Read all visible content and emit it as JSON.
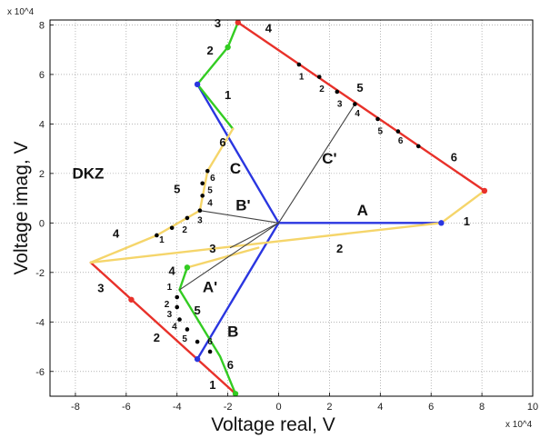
{
  "chart_data": {
    "type": "line",
    "xlabel": "Voltage real, V",
    "ylabel": "Voltage imag, V",
    "x_exponent": "x 10^4",
    "y_exponent": "x 10^4",
    "xlim": [
      -90000,
      100000
    ],
    "ylim": [
      -70000,
      82000
    ],
    "x_ticks": [
      -80000,
      -60000,
      -40000,
      -20000,
      0,
      20000,
      40000,
      60000,
      80000,
      100000
    ],
    "x_tick_labels": [
      "-8",
      "-6",
      "-4",
      "-2",
      "0",
      "2",
      "4",
      "6",
      "8",
      "10"
    ],
    "y_ticks": [
      -60000,
      -40000,
      -20000,
      0,
      20000,
      40000,
      60000,
      80000
    ],
    "y_tick_labels": [
      "-6",
      "-4",
      "-2",
      "0",
      "2",
      "4",
      "6",
      "8"
    ],
    "grid": true,
    "colors": {
      "red": "#e8312a",
      "blue": "#2a36e0",
      "green": "#33cc22",
      "yellow": "#f5d56a",
      "gray": "#444444",
      "black": "#000000"
    },
    "series": [
      {
        "color": "red",
        "points": [
          [
            -16000,
            81000
          ],
          [
            81000,
            13000
          ]
        ]
      },
      {
        "color": "red",
        "points": [
          [
            -74000,
            -16000
          ],
          [
            -17000,
            -69000
          ]
        ]
      },
      {
        "color": "blue",
        "points": [
          [
            0,
            0
          ],
          [
            -32000,
            56000
          ]
        ]
      },
      {
        "color": "blue",
        "points": [
          [
            0,
            0
          ],
          [
            -32000,
            -55000
          ]
        ]
      },
      {
        "color": "blue",
        "points": [
          [
            0,
            0
          ],
          [
            64000,
            0
          ]
        ]
      },
      {
        "color": "green",
        "points": [
          [
            -16000,
            81000
          ],
          [
            -20000,
            71000
          ],
          [
            -32000,
            56000
          ],
          [
            -18000,
            38000
          ]
        ]
      },
      {
        "color": "green",
        "points": [
          [
            -17000,
            -69000
          ],
          [
            -23000,
            -54000
          ],
          [
            -39000,
            -27000
          ],
          [
            -36000,
            -18000
          ]
        ]
      },
      {
        "color": "yellow",
        "points": [
          [
            -18000,
            38000
          ],
          [
            -28000,
            21000
          ],
          [
            -31000,
            5000
          ],
          [
            -48000,
            -5000
          ],
          [
            -74000,
            -16000
          ],
          [
            64000,
            0
          ],
          [
            81000,
            13000
          ]
        ]
      },
      {
        "color": "yellow",
        "points": [
          [
            -36000,
            -18000
          ],
          [
            -8000,
            -10000
          ]
        ]
      },
      {
        "color": "gray",
        "points": [
          [
            0,
            0
          ],
          [
            30000,
            48000
          ]
        ]
      },
      {
        "color": "gray",
        "points": [
          [
            0,
            0
          ],
          [
            -31000,
            5000
          ]
        ]
      },
      {
        "color": "gray",
        "points": [
          [
            0,
            0
          ],
          [
            -39000,
            -27000
          ]
        ]
      },
      {
        "color": "gray",
        "points": [
          [
            0,
            0
          ],
          [
            -19000,
            -10000
          ]
        ]
      }
    ],
    "markers": [
      {
        "x": -16000,
        "y": 81000,
        "color": "red"
      },
      {
        "x": 81000,
        "y": 13000,
        "color": "red"
      },
      {
        "x": -58000,
        "y": -31000,
        "color": "red"
      },
      {
        "x": -32000,
        "y": 56000,
        "color": "blue"
      },
      {
        "x": 64000,
        "y": 0,
        "color": "blue"
      },
      {
        "x": -32000,
        "y": -55000,
        "color": "blue"
      },
      {
        "x": -20000,
        "y": 71000,
        "color": "green"
      },
      {
        "x": -36000,
        "y": -18000,
        "color": "green"
      },
      {
        "x": -17000,
        "y": -69000,
        "color": "green"
      },
      {
        "x": 8000,
        "y": 64000,
        "color": "black"
      },
      {
        "x": 16000,
        "y": 59000,
        "color": "black"
      },
      {
        "x": 23000,
        "y": 53000,
        "color": "black"
      },
      {
        "x": 30000,
        "y": 48000,
        "color": "black"
      },
      {
        "x": 39000,
        "y": 42000,
        "color": "black"
      },
      {
        "x": 47000,
        "y": 37000,
        "color": "black"
      },
      {
        "x": 55000,
        "y": 31000,
        "color": "black"
      },
      {
        "x": -28000,
        "y": 21000,
        "color": "black"
      },
      {
        "x": -30000,
        "y": 16000,
        "color": "black"
      },
      {
        "x": -30000,
        "y": 11000,
        "color": "black"
      },
      {
        "x": -31000,
        "y": 5000,
        "color": "black"
      },
      {
        "x": -36000,
        "y": 2000,
        "color": "black"
      },
      {
        "x": -42000,
        "y": -2000,
        "color": "black"
      },
      {
        "x": -48000,
        "y": -5000,
        "color": "black"
      },
      {
        "x": -40000,
        "y": -30000,
        "color": "black"
      },
      {
        "x": -40000,
        "y": -34000,
        "color": "black"
      },
      {
        "x": -39000,
        "y": -39000,
        "color": "black"
      },
      {
        "x": -36000,
        "y": -43000,
        "color": "black"
      },
      {
        "x": -32000,
        "y": -48000,
        "color": "black"
      },
      {
        "x": -27000,
        "y": -52000,
        "color": "black"
      }
    ],
    "annotations": [
      {
        "text": "A",
        "x": 33000,
        "y": 3000,
        "size": "big"
      },
      {
        "text": "C",
        "x": -17000,
        "y": 20000,
        "size": "big"
      },
      {
        "text": "B",
        "x": -18000,
        "y": -46000,
        "size": "big"
      },
      {
        "text": "C'",
        "x": 20000,
        "y": 24000,
        "size": "big"
      },
      {
        "text": "B'",
        "x": -14000,
        "y": 5000,
        "size": "big"
      },
      {
        "text": "A'",
        "x": -27000,
        "y": -28000,
        "size": "big"
      },
      {
        "text": "DKZ",
        "x": -75000,
        "y": 18000,
        "size": "big"
      },
      {
        "text": "1",
        "x": 74000,
        "y": -1000,
        "size": "mid"
      },
      {
        "text": "2",
        "x": 24000,
        "y": -12000,
        "size": "mid"
      },
      {
        "text": "3",
        "x": -26000,
        "y": -12000,
        "size": "mid"
      },
      {
        "text": "4",
        "x": -42000,
        "y": -21000,
        "size": "mid"
      },
      {
        "text": "5",
        "x": -40000,
        "y": 12000,
        "size": "mid"
      },
      {
        "text": "4",
        "x": -64000,
        "y": -6000,
        "size": "mid"
      },
      {
        "text": "6",
        "x": -22000,
        "y": 31000,
        "size": "mid"
      },
      {
        "text": "1",
        "x": -20000,
        "y": 50000,
        "size": "mid"
      },
      {
        "text": "2",
        "x": -27000,
        "y": 68000,
        "size": "mid"
      },
      {
        "text": "3",
        "x": -24000,
        "y": 79000,
        "size": "mid"
      },
      {
        "text": "4",
        "x": -4000,
        "y": 77000,
        "size": "mid"
      },
      {
        "text": "5",
        "x": 32000,
        "y": 53000,
        "size": "mid"
      },
      {
        "text": "6",
        "x": 69000,
        "y": 25000,
        "size": "mid"
      },
      {
        "text": "3",
        "x": -70000,
        "y": -28000,
        "size": "mid"
      },
      {
        "text": "2",
        "x": -48000,
        "y": -48000,
        "size": "mid"
      },
      {
        "text": "1",
        "x": -26000,
        "y": -67000,
        "size": "mid"
      },
      {
        "text": "5",
        "x": -32000,
        "y": -37000,
        "size": "mid"
      },
      {
        "text": "6",
        "x": -19000,
        "y": -59000,
        "size": "mid"
      },
      {
        "text": "1",
        "x": 9000,
        "y": 58000,
        "size": "small"
      },
      {
        "text": "2",
        "x": 17000,
        "y": 53000,
        "size": "small"
      },
      {
        "text": "3",
        "x": 24000,
        "y": 47000,
        "size": "small"
      },
      {
        "text": "4",
        "x": 31000,
        "y": 43000,
        "size": "small"
      },
      {
        "text": "5",
        "x": 40000,
        "y": 36000,
        "size": "small"
      },
      {
        "text": "6",
        "x": 48000,
        "y": 32000,
        "size": "small"
      },
      {
        "text": "6",
        "x": -26000,
        "y": 17000,
        "size": "small"
      },
      {
        "text": "5",
        "x": -27000,
        "y": 12000,
        "size": "small"
      },
      {
        "text": "4",
        "x": -27000,
        "y": 7000,
        "size": "small"
      },
      {
        "text": "3",
        "x": -31000,
        "y": 0,
        "size": "small"
      },
      {
        "text": "2",
        "x": -37000,
        "y": -4000,
        "size": "small"
      },
      {
        "text": "1",
        "x": -46000,
        "y": -8000,
        "size": "small"
      },
      {
        "text": "1",
        "x": -43000,
        "y": -27000,
        "size": "small"
      },
      {
        "text": "2",
        "x": -44000,
        "y": -34000,
        "size": "small"
      },
      {
        "text": "3",
        "x": -43000,
        "y": -38000,
        "size": "small"
      },
      {
        "text": "4",
        "x": -41000,
        "y": -43000,
        "size": "small"
      },
      {
        "text": "5",
        "x": -37000,
        "y": -48000,
        "size": "small"
      },
      {
        "text": "6",
        "x": -27000,
        "y": -49000,
        "size": "small"
      }
    ]
  }
}
